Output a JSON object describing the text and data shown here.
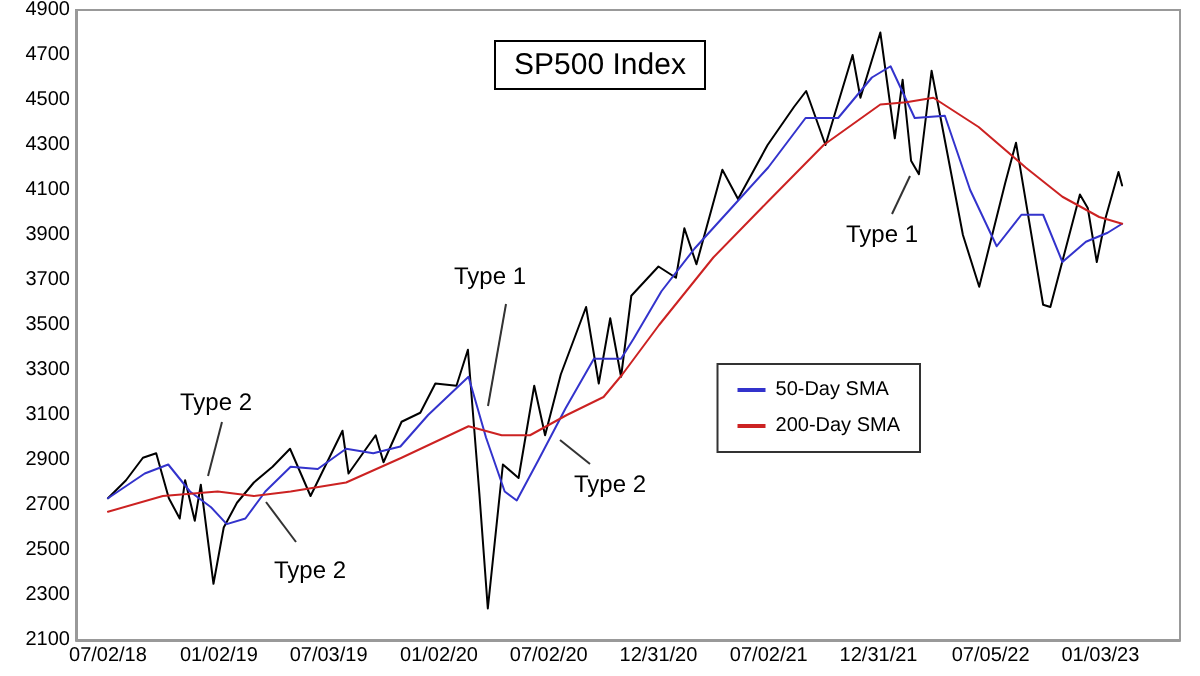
{
  "chart_data": {
    "type": "line",
    "title": "SP500 Index",
    "xlim": [
      "2018-05-10",
      "2023-05-15"
    ],
    "xticks": [
      {
        "value": "2018-07-02",
        "label": "07/02/18"
      },
      {
        "value": "2019-01-02",
        "label": "01/02/19"
      },
      {
        "value": "2019-07-03",
        "label": "07/03/19"
      },
      {
        "value": "2020-01-02",
        "label": "01/02/20"
      },
      {
        "value": "2020-07-02",
        "label": "07/02/20"
      },
      {
        "value": "2020-12-31",
        "label": "12/31/20"
      },
      {
        "value": "2021-07-02",
        "label": "07/02/21"
      },
      {
        "value": "2021-12-31",
        "label": "12/31/21"
      },
      {
        "value": "2022-07-05",
        "label": "07/05/22"
      },
      {
        "value": "2023-01-03",
        "label": "01/03/23"
      }
    ],
    "ylim": [
      2100,
      4900
    ],
    "yticks": [
      2100,
      2300,
      2500,
      2700,
      2900,
      3100,
      3300,
      3500,
      3700,
      3900,
      4100,
      4300,
      4500,
      4700,
      4900
    ],
    "grid": false,
    "legend": "right",
    "marker": "none",
    "line_style": "solid",
    "series": [
      {
        "color": "#000000",
        "x": [
          "2018-07-02",
          "2018-08-01",
          "2018-08-29",
          "2018-09-20",
          "2018-10-11",
          "2018-10-29",
          "2018-11-07",
          "2018-11-23",
          "2018-12-03",
          "2018-12-24",
          "2019-01-10",
          "2019-02-01",
          "2019-03-01",
          "2019-04-01",
          "2019-04-30",
          "2019-06-03",
          "2019-07-26",
          "2019-08-05",
          "2019-09-19",
          "2019-10-02",
          "2019-11-01",
          "2019-12-02",
          "2019-12-27",
          "2020-01-31",
          "2020-02-19",
          "2020-03-09",
          "2020-03-23",
          "2020-04-17",
          "2020-05-13",
          "2020-06-08",
          "2020-06-26",
          "2020-07-22",
          "2020-09-02",
          "2020-09-23",
          "2020-10-12",
          "2020-10-30",
          "2020-11-16",
          "2020-12-31",
          "2021-01-29",
          "2021-02-12",
          "2021-03-04",
          "2021-04-16",
          "2021-05-12",
          "2021-06-30",
          "2021-08-13",
          "2021-09-02",
          "2021-10-04",
          "2021-11-18",
          "2021-12-01",
          "2022-01-03",
          "2022-01-27",
          "2022-02-09",
          "2022-02-23",
          "2022-03-08",
          "2022-03-29",
          "2022-05-20",
          "2022-06-16",
          "2022-07-29",
          "2022-08-16",
          "2022-09-30",
          "2022-10-12",
          "2022-11-30",
          "2022-12-13",
          "2022-12-28",
          "2023-01-12",
          "2023-02-02",
          "2023-02-08"
        ],
        "values": [
          2730,
          2810,
          2910,
          2930,
          2730,
          2640,
          2810,
          2630,
          2790,
          2350,
          2600,
          2710,
          2800,
          2870,
          2950,
          2740,
          3030,
          2840,
          3010,
          2890,
          3070,
          3110,
          3240,
          3230,
          3390,
          2750,
          2240,
          2880,
          2820,
          3230,
          3010,
          3280,
          3580,
          3240,
          3530,
          3270,
          3630,
          3760,
          3710,
          3930,
          3770,
          4190,
          4060,
          4300,
          4470,
          4540,
          4300,
          4700,
          4510,
          4800,
          4330,
          4590,
          4230,
          4170,
          4630,
          3900,
          3670,
          4130,
          4310,
          3590,
          3580,
          4080,
          4020,
          3780,
          3980,
          4180,
          4120
        ]
      },
      {
        "name": "50-Day SMA",
        "color": "#3333cc",
        "x": [
          "2018-07-02",
          "2018-09-01",
          "2018-10-10",
          "2018-11-15",
          "2018-12-20",
          "2019-01-15",
          "2019-02-15",
          "2019-03-20",
          "2019-05-01",
          "2019-06-15",
          "2019-08-01",
          "2019-09-15",
          "2019-10-30",
          "2019-12-15",
          "2020-02-20",
          "2020-03-20",
          "2020-04-20",
          "2020-05-10",
          "2020-06-15",
          "2020-07-30",
          "2020-09-15",
          "2020-10-30",
          "2020-11-20",
          "2021-01-05",
          "2021-03-01",
          "2021-05-01",
          "2021-07-01",
          "2021-09-01",
          "2021-10-25",
          "2021-12-20",
          "2022-01-20",
          "2022-03-01",
          "2022-04-20",
          "2022-06-01",
          "2022-07-15",
          "2022-08-25",
          "2022-09-30",
          "2022-11-01",
          "2022-12-10",
          "2023-01-15",
          "2023-02-08"
        ],
        "values": [
          2730,
          2840,
          2880,
          2760,
          2690,
          2615,
          2640,
          2760,
          2870,
          2860,
          2950,
          2930,
          2960,
          3100,
          3270,
          3000,
          2760,
          2720,
          2900,
          3130,
          3350,
          3350,
          3440,
          3650,
          3840,
          4020,
          4200,
          4420,
          4420,
          4600,
          4650,
          4420,
          4430,
          4100,
          3850,
          3990,
          3990,
          3780,
          3870,
          3910,
          3950
        ]
      },
      {
        "name": "200-Day SMA",
        "color": "#cc2222",
        "x": [
          "2018-07-02",
          "2018-10-01",
          "2018-12-31",
          "2019-03-01",
          "2019-05-01",
          "2019-08-01",
          "2019-11-01",
          "2020-02-20",
          "2020-04-15",
          "2020-06-01",
          "2020-08-01",
          "2020-10-01",
          "2020-11-01",
          "2021-01-01",
          "2021-04-01",
          "2021-07-01",
          "2021-10-01",
          "2022-01-03",
          "2022-02-15",
          "2022-04-01",
          "2022-06-15",
          "2022-09-01",
          "2022-11-01",
          "2023-01-01",
          "2023-02-08"
        ],
        "values": [
          2670,
          2740,
          2760,
          2740,
          2760,
          2800,
          2910,
          3050,
          3010,
          3010,
          3100,
          3180,
          3280,
          3500,
          3800,
          4050,
          4300,
          4480,
          4490,
          4510,
          4380,
          4200,
          4070,
          3980,
          3950
        ]
      }
    ],
    "annotations": [
      "Type 2",
      "Type 2",
      "Type 1",
      "Type 2",
      "Type 1"
    ]
  }
}
